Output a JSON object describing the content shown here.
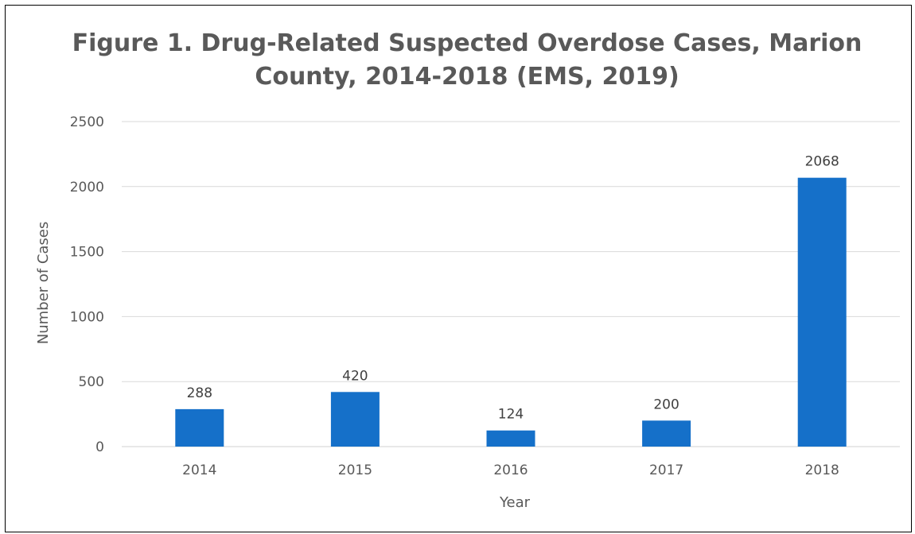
{
  "chart_data": {
    "type": "bar",
    "title_lines": [
      "Figure 1. Drug-Related Suspected Overdose Cases, Marion",
      "County, 2014-2018 (EMS, 2019)"
    ],
    "xlabel": "Year",
    "ylabel": "Number of Cases",
    "categories": [
      "2014",
      "2015",
      "2016",
      "2017",
      "2018"
    ],
    "values": [
      288,
      420,
      124,
      200,
      2068
    ],
    "data_labels": [
      "288",
      "420",
      "124",
      "200",
      "2068"
    ],
    "ylim": [
      0,
      2500
    ],
    "yticks": [
      0,
      500,
      1000,
      1500,
      2000,
      2500
    ],
    "ytick_labels": [
      "0",
      "500",
      "1000",
      "1500",
      "2000",
      "2500"
    ],
    "grid": true,
    "legend": "none",
    "bar_color": "#1570c9"
  }
}
